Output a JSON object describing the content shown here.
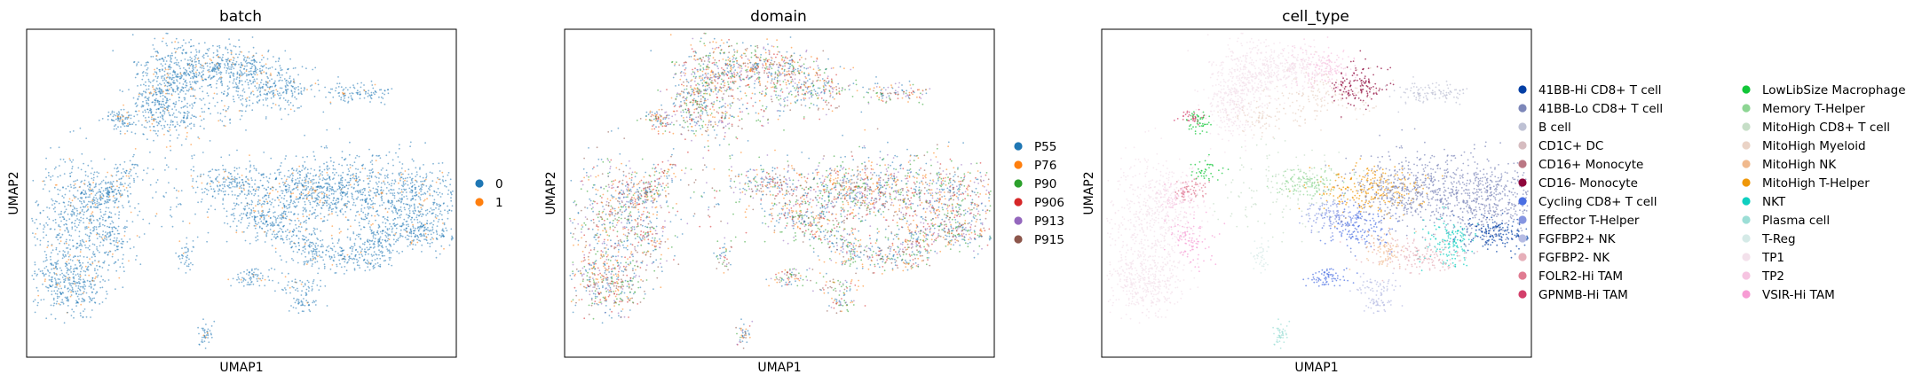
{
  "chart_data": [
    {
      "type": "scatter",
      "title": "batch",
      "xlabel": "UMAP1",
      "ylabel": "UMAP2",
      "grid": false,
      "legend": "right",
      "series": [
        {
          "name": "0",
          "color": "#1f77b4",
          "weight": 0.93
        },
        {
          "name": "1",
          "color": "#ff7f0e",
          "weight": 0.07
        }
      ]
    },
    {
      "type": "scatter",
      "title": "domain",
      "xlabel": "UMAP1",
      "ylabel": "UMAP2",
      "grid": false,
      "legend": "right",
      "series": [
        {
          "name": "P55",
          "color": "#1f77b4",
          "weight": 0.26
        },
        {
          "name": "P76",
          "color": "#ff7f0e",
          "weight": 0.17
        },
        {
          "name": "P90",
          "color": "#2ca02c",
          "weight": 0.17
        },
        {
          "name": "P906",
          "color": "#d62728",
          "weight": 0.12
        },
        {
          "name": "P913",
          "color": "#9467bd",
          "weight": 0.14
        },
        {
          "name": "P915",
          "color": "#8c564b",
          "weight": 0.14
        }
      ]
    },
    {
      "type": "scatter",
      "title": "cell_type",
      "xlabel": "UMAP1",
      "ylabel": "UMAP2",
      "grid": false,
      "legend": "right",
      "series": [
        {
          "name": "41BB-Hi CD8+ T cell",
          "color": "#023fa5"
        },
        {
          "name": "41BB-Lo CD8+ T cell",
          "color": "#7d87b9"
        },
        {
          "name": "B cell",
          "color": "#bec1d4"
        },
        {
          "name": "CD1C+ DC",
          "color": "#d6bcc0"
        },
        {
          "name": "CD16+ Monocyte",
          "color": "#bb7784"
        },
        {
          "name": "CD16- Monocyte",
          "color": "#8e063b"
        },
        {
          "name": "Cycling CD8+ T cell",
          "color": "#4a6fe3"
        },
        {
          "name": "Effector T-Helper",
          "color": "#8595e1"
        },
        {
          "name": "FGFBP2+ NK",
          "color": "#b5bbe3"
        },
        {
          "name": "FGFBP2- NK",
          "color": "#e6afb9"
        },
        {
          "name": "FOLR2-Hi TAM",
          "color": "#e07b91"
        },
        {
          "name": "GPNMB-Hi TAM",
          "color": "#d33f6a"
        },
        {
          "name": "LowLibSize Macrophage",
          "color": "#11c638"
        },
        {
          "name": "Memory T-Helper",
          "color": "#8dd593"
        },
        {
          "name": "MitoHigh CD8+ T cell",
          "color": "#c6dec7"
        },
        {
          "name": "MitoHigh Myeloid",
          "color": "#ead3c6"
        },
        {
          "name": "MitoHigh NK",
          "color": "#f0b98d"
        },
        {
          "name": "MitoHigh T-Helper",
          "color": "#ef9708"
        },
        {
          "name": "NKT",
          "color": "#0fcfc0"
        },
        {
          "name": "Plasma cell",
          "color": "#9cded6"
        },
        {
          "name": "T-Reg",
          "color": "#d5eae7"
        },
        {
          "name": "TP1",
          "color": "#f3e1eb"
        },
        {
          "name": "TP2",
          "color": "#f6c4e1"
        },
        {
          "name": "VSIR-Hi TAM",
          "color": "#f79cd4"
        }
      ]
    }
  ]
}
